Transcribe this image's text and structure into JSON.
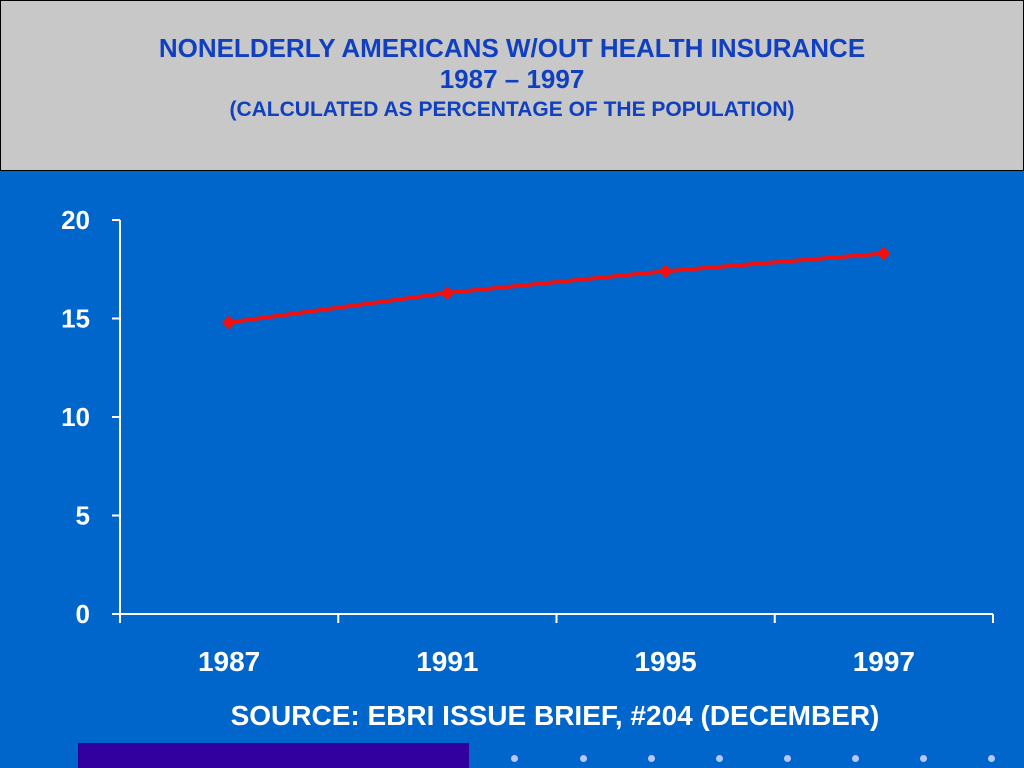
{
  "header": {
    "title_line1": "NONELDERLY AMERICANS W/OUT HEALTH INSURANCE",
    "title_line2": "1987 – 1997",
    "subtitle": "(CALCULATED AS PERCENTAGE OF THE POPULATION)"
  },
  "footer": {
    "source": "SOURCE: EBRI ISSUE BRIEF, #204 (DECEMBER)"
  },
  "colors": {
    "background": "#0066cc",
    "header_bg": "#c8c8c8",
    "title": "#1040c0",
    "series_line": "#ee1111",
    "axis": "#ffffff",
    "bottom_bar": "#3300a0"
  },
  "chart_data": {
    "type": "line",
    "categories": [
      "1987",
      "1991",
      "1995",
      "1997"
    ],
    "series": [
      {
        "values": [
          14.8,
          16.3,
          17.4,
          18.3
        ]
      }
    ],
    "ylim": [
      0,
      20
    ],
    "yticks": [
      "0",
      "5",
      "10",
      "15",
      "20"
    ],
    "grid": false,
    "legend": "none"
  }
}
